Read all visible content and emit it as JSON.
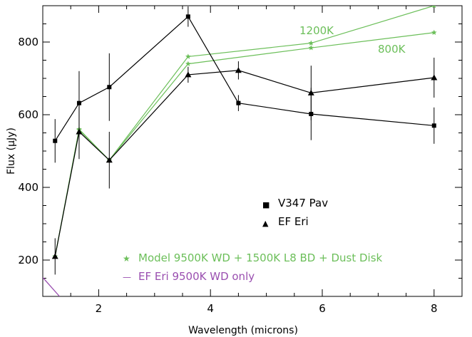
{
  "chart_data": {
    "type": "line",
    "xlabel": "Wavelength (microns)",
    "ylabel": "Flux (μJy)",
    "xlim": [
      1.0,
      8.5
    ],
    "ylim": [
      100,
      900
    ],
    "xticks": [
      2,
      4,
      6,
      8
    ],
    "yticks": [
      200,
      400,
      600,
      800
    ],
    "grid": false,
    "colors": {
      "data": "#000000",
      "model": "#6cbf5a",
      "wd_only": "#9a4fb0"
    },
    "series": [
      {
        "name": "V347 Pav",
        "marker": "square",
        "points": [
          {
            "x": 1.22,
            "y": 528,
            "err": 60
          },
          {
            "x": 1.65,
            "y": 632,
            "err": 88
          },
          {
            "x": 2.19,
            "y": 676,
            "err": 93
          },
          {
            "x": 3.6,
            "y": 870,
            "err": 28
          },
          {
            "x": 4.5,
            "y": 632,
            "err": 22
          },
          {
            "x": 5.8,
            "y": 602,
            "err": 72
          },
          {
            "x": 8.0,
            "y": 570,
            "err": 50
          }
        ]
      },
      {
        "name": "EF Eri",
        "marker": "triangle",
        "points": [
          {
            "x": 1.22,
            "y": 210,
            "err": 50
          },
          {
            "x": 1.65,
            "y": 553,
            "err": 75
          },
          {
            "x": 2.19,
            "y": 475,
            "err": 78
          },
          {
            "x": 3.6,
            "y": 710,
            "err": 22
          },
          {
            "x": 4.5,
            "y": 722,
            "err": 25
          },
          {
            "x": 5.8,
            "y": 660,
            "err": 75
          },
          {
            "x": 8.0,
            "y": 702,
            "err": 55
          }
        ]
      },
      {
        "name": "Model 9500K WD + 1500K L8 BD + Dust Disk",
        "marker": "star",
        "curves": [
          {
            "label": "1200K",
            "x": [
              1.22,
              1.65,
              2.19,
              3.6,
              5.8,
              8.0
            ],
            "y": [
              210,
              560,
              475,
              760,
              797,
              900
            ]
          },
          {
            "label": "800K",
            "x": [
              1.22,
              1.65,
              2.19,
              3.6,
              5.8,
              8.0
            ],
            "y": [
              210,
              558,
              475,
              740,
              784,
              826
            ]
          }
        ]
      },
      {
        "name": "EF Eri 9500K WD only",
        "marker": "line",
        "x": [
          1.0,
          1.3
        ],
        "y": [
          152,
          100
        ]
      }
    ],
    "legend": [
      {
        "symbol": "■",
        "label": "V347 Pav"
      },
      {
        "symbol": "▲",
        "label": "EF Eri"
      },
      {
        "symbol": "★",
        "label": "Model 9500K WD + 1500K L8 BD + Dust Disk"
      },
      {
        "symbol": "—",
        "label": "EF Eri 9500K WD only"
      }
    ],
    "annotations": [
      "1200K",
      "800K"
    ]
  }
}
